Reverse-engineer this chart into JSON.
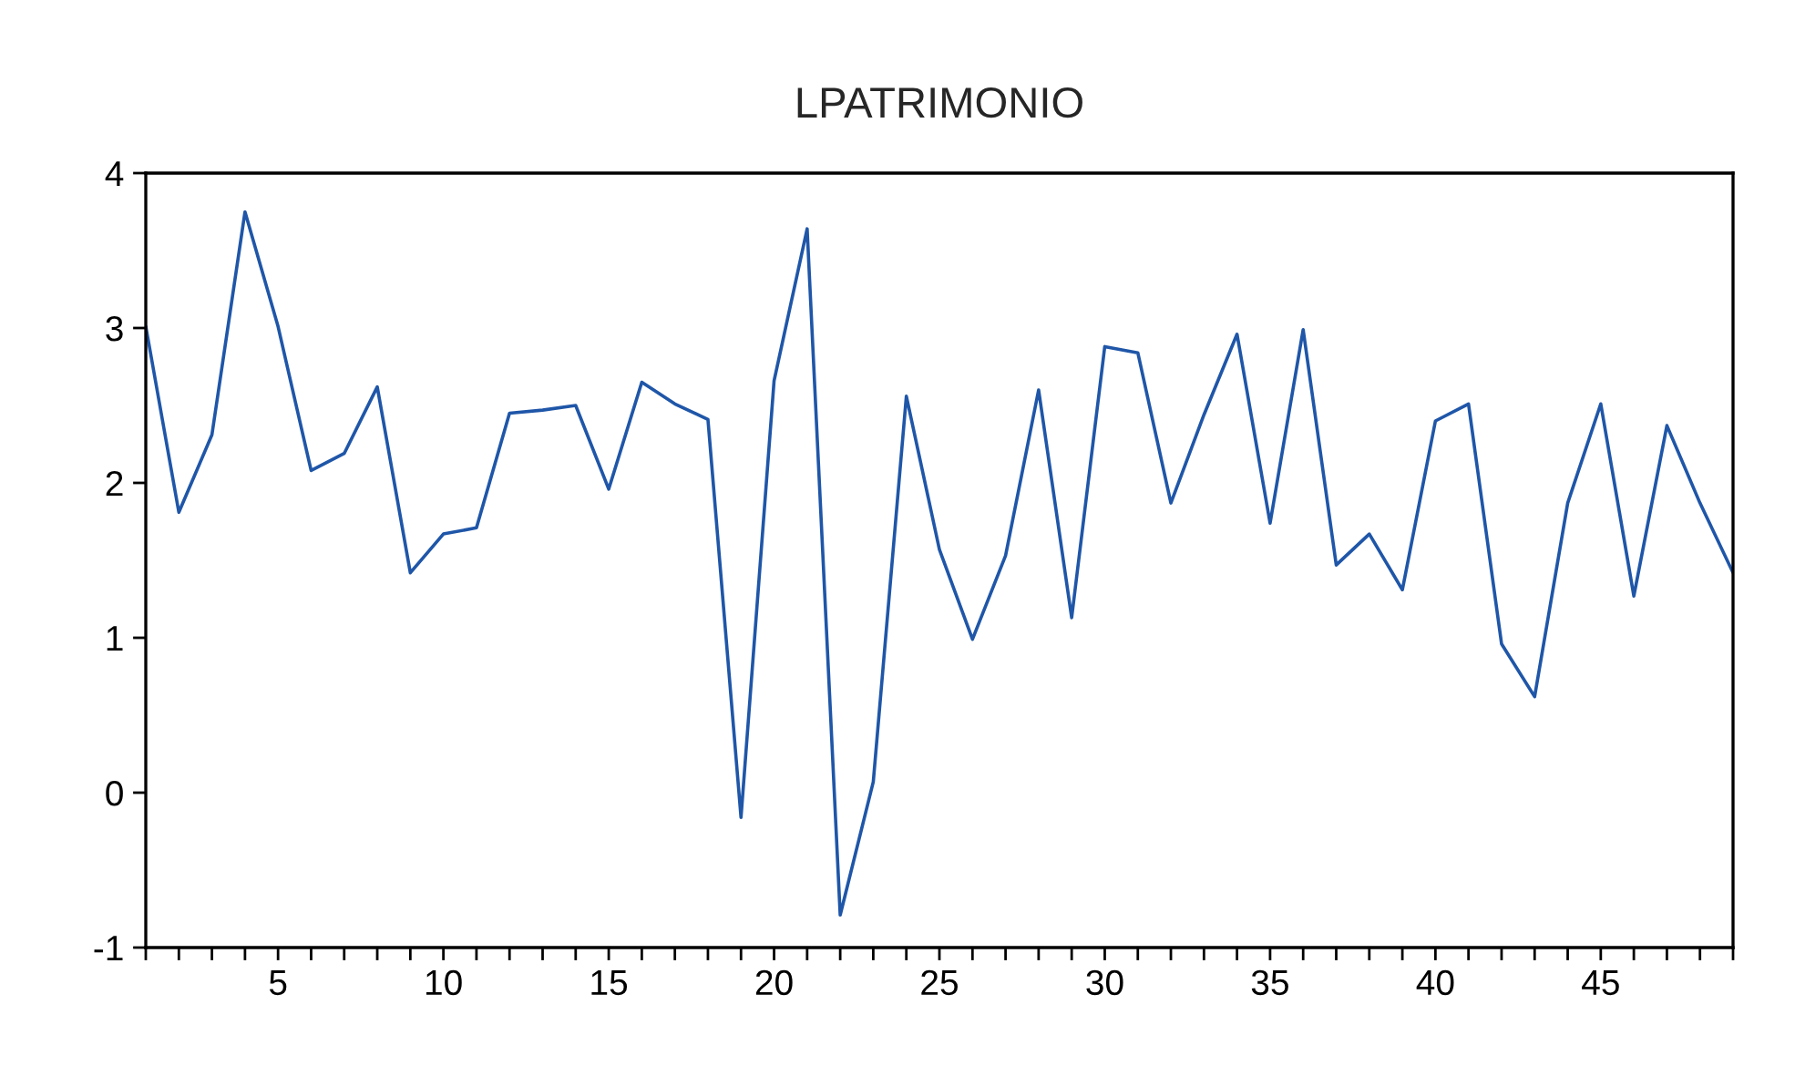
{
  "chart_data": {
    "type": "line",
    "title": "LPATRIMONIO",
    "x": [
      1,
      2,
      3,
      4,
      5,
      6,
      7,
      8,
      9,
      10,
      11,
      12,
      13,
      14,
      15,
      16,
      17,
      18,
      19,
      20,
      21,
      22,
      23,
      24,
      25,
      26,
      27,
      28,
      29,
      30,
      31,
      32,
      33,
      34,
      35,
      36,
      37,
      38,
      39,
      40,
      41,
      42,
      43,
      44,
      45,
      46,
      47,
      48,
      49
    ],
    "series": [
      {
        "color": "#1f56a8",
        "values": [
          3.01,
          1.81,
          2.31,
          3.75,
          3.01,
          2.08,
          2.19,
          2.62,
          1.42,
          1.67,
          1.71,
          2.45,
          2.47,
          2.5,
          1.96,
          2.65,
          2.51,
          2.41,
          -0.16,
          2.66,
          3.64,
          -0.79,
          0.07,
          2.56,
          1.57,
          0.99,
          1.53,
          2.6,
          1.13,
          2.88,
          2.84,
          1.87,
          2.44,
          2.96,
          1.74,
          2.99,
          1.47,
          1.67,
          1.31,
          2.4,
          2.51,
          0.96,
          0.62,
          1.87,
          2.51,
          1.27,
          2.37,
          1.87,
          1.42
        ]
      }
    ],
    "xlim": [
      1,
      49
    ],
    "xticks": [
      {
        "value": 1,
        "label": null
      },
      {
        "value": 2,
        "label": null
      },
      {
        "value": 3,
        "label": null
      },
      {
        "value": 4,
        "label": null
      },
      5,
      {
        "value": 6,
        "label": null
      },
      {
        "value": 7,
        "label": null
      },
      {
        "value": 8,
        "label": null
      },
      {
        "value": 9,
        "label": null
      },
      10,
      {
        "value": 11,
        "label": null
      },
      {
        "value": 12,
        "label": null
      },
      {
        "value": 13,
        "label": null
      },
      {
        "value": 14,
        "label": null
      },
      15,
      {
        "value": 16,
        "label": null
      },
      {
        "value": 17,
        "label": null
      },
      {
        "value": 18,
        "label": null
      },
      {
        "value": 19,
        "label": null
      },
      20,
      {
        "value": 21,
        "label": null
      },
      {
        "value": 22,
        "label": null
      },
      {
        "value": 23,
        "label": null
      },
      {
        "value": 24,
        "label": null
      },
      25,
      {
        "value": 26,
        "label": null
      },
      {
        "value": 27,
        "label": null
      },
      {
        "value": 28,
        "label": null
      },
      {
        "value": 29,
        "label": null
      },
      30,
      {
        "value": 31,
        "label": null
      },
      {
        "value": 32,
        "label": null
      },
      {
        "value": 33,
        "label": null
      },
      {
        "value": 34,
        "label": null
      },
      35,
      {
        "value": 36,
        "label": null
      },
      {
        "value": 37,
        "label": null
      },
      {
        "value": 38,
        "label": null
      },
      {
        "value": 39,
        "label": null
      },
      40,
      {
        "value": 41,
        "label": null
      },
      {
        "value": 42,
        "label": null
      },
      {
        "value": 43,
        "label": null
      },
      {
        "value": 44,
        "label": null
      },
      45,
      {
        "value": 46,
        "label": null
      },
      {
        "value": 47,
        "label": null
      },
      {
        "value": 48,
        "label": null
      },
      {
        "value": 49,
        "label": null
      }
    ],
    "ylim": [
      -1,
      4
    ],
    "yticks": [
      -1,
      0,
      1,
      2,
      3,
      4
    ],
    "grid": false
  }
}
